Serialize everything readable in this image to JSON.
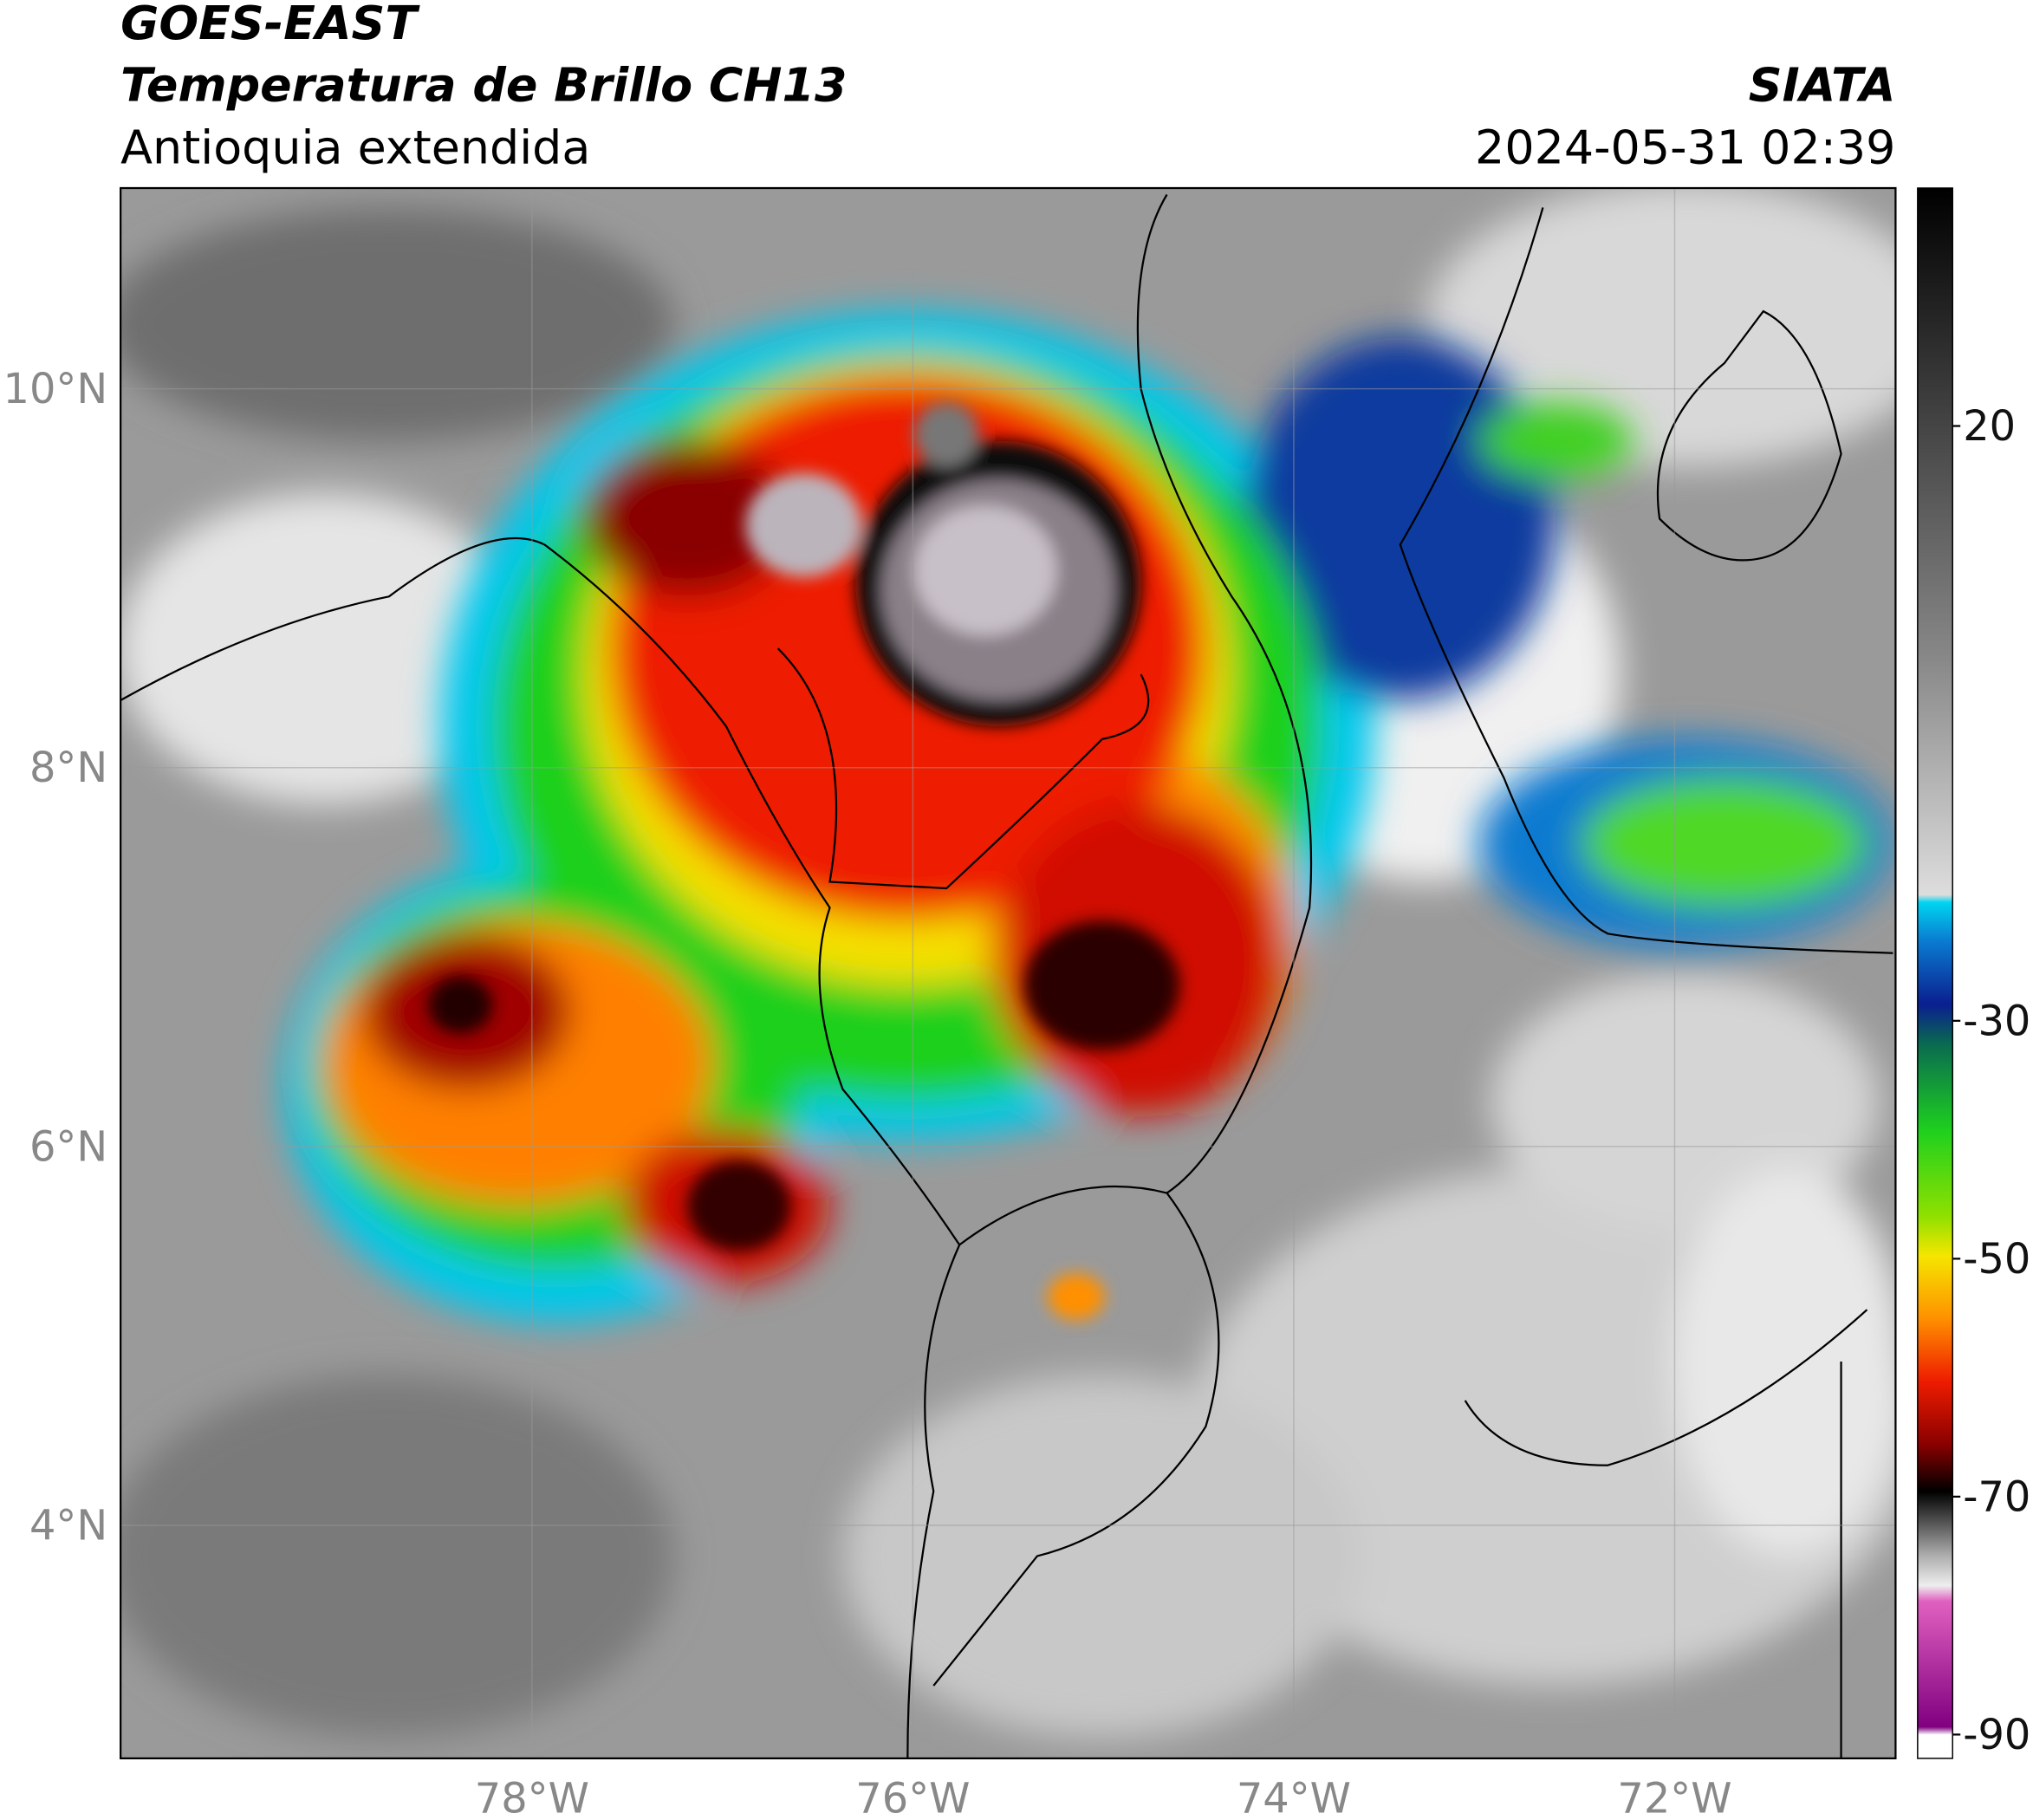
{
  "header": {
    "satellite": "GOES-EAST",
    "product": "Temperatura de Brillo CH13",
    "region": "Antioquia extendida",
    "agency": "SIATA",
    "datetime": "2024-05-31 02:39"
  },
  "map": {
    "xlim": [
      -80.16,
      -70.84
    ],
    "ylim": [
      2.77,
      11.06
    ],
    "xticks": [
      {
        "value": -78,
        "label": "78°W"
      },
      {
        "value": -76,
        "label": "76°W"
      },
      {
        "value": -74,
        "label": "74°W"
      },
      {
        "value": -72,
        "label": "72°W"
      }
    ],
    "yticks": [
      {
        "value": 10,
        "label": "10°N"
      },
      {
        "value": 8,
        "label": "8°N"
      },
      {
        "value": 6,
        "label": "6°N"
      },
      {
        "value": 4,
        "label": "4°N"
      }
    ],
    "grid": true
  },
  "colorbar": {
    "lim": [
      -92,
      40
    ],
    "ticks": [
      20,
      -30,
      -50,
      -70,
      -90
    ]
  }
}
